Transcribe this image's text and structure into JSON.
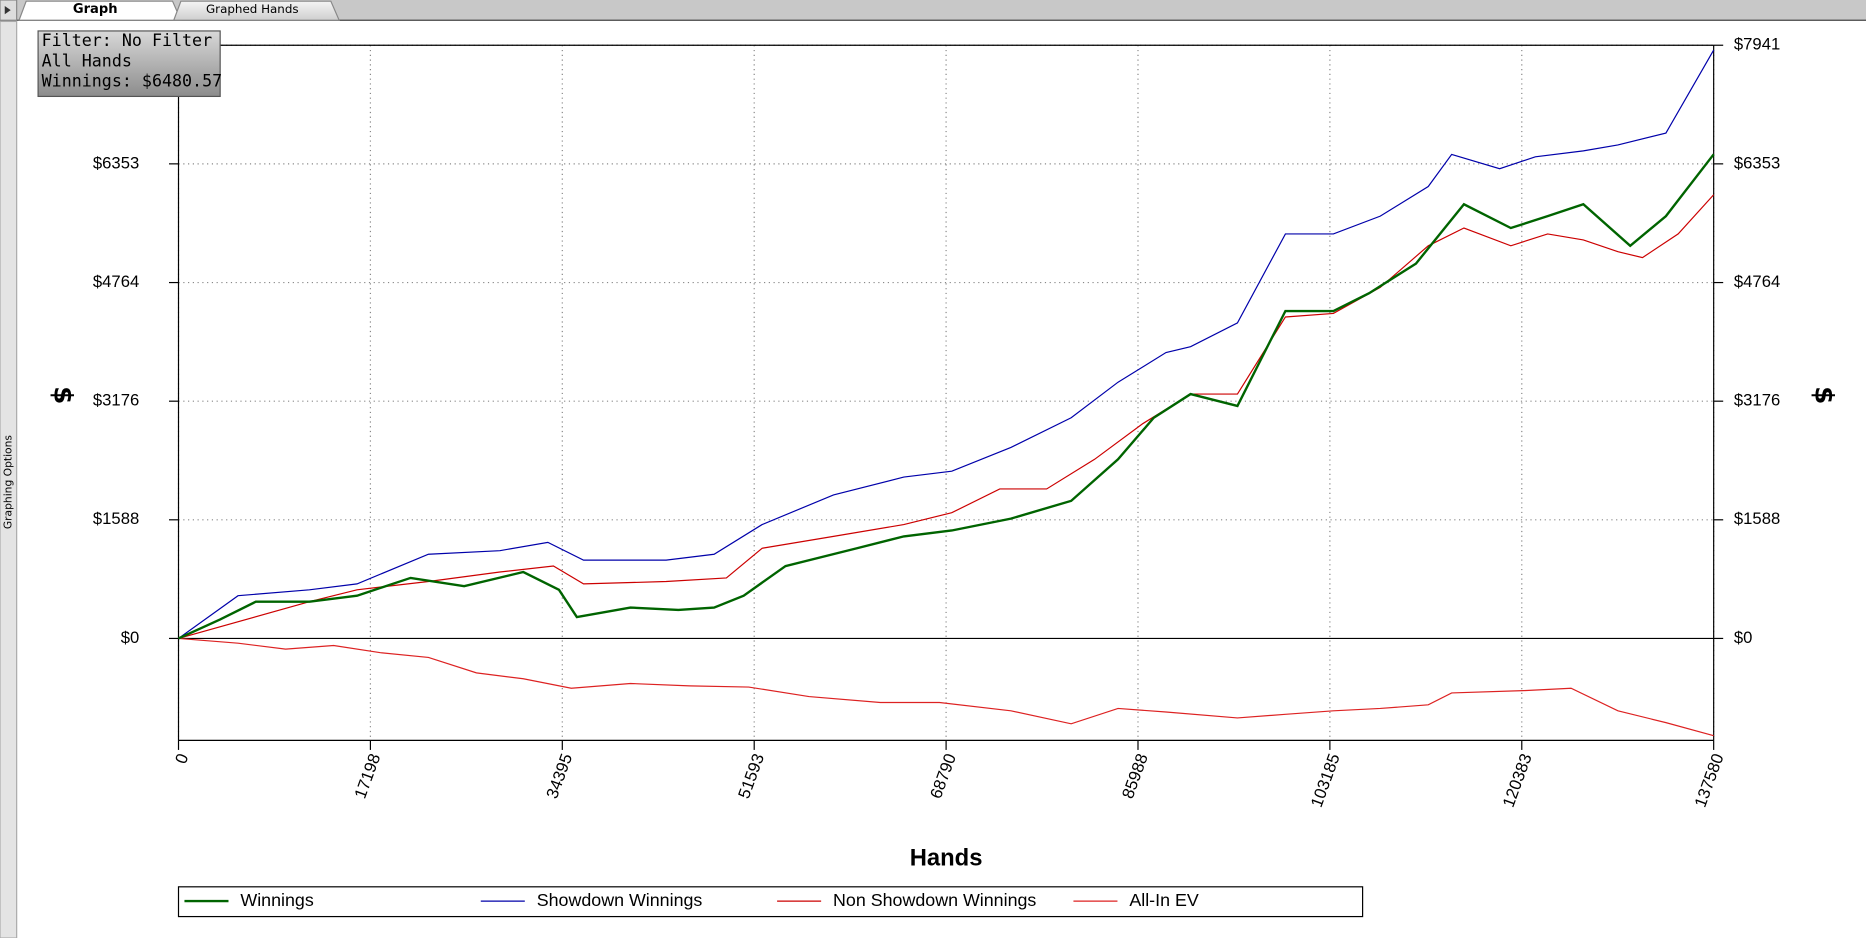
{
  "tabs": [
    "Graph",
    "Graphed Hands"
  ],
  "sidebar": {
    "label": "Graphing Options"
  },
  "filter_box": {
    "lines": [
      "Filter: No Filter",
      "All Hands",
      "Winnings: $6480.57"
    ]
  },
  "chart_data": {
    "type": "line",
    "xlabel": "Hands",
    "ylabel": "$",
    "y2label": "$",
    "xlim": [
      0,
      137580
    ],
    "xticks": [
      0,
      17198,
      34395,
      51593,
      68790,
      85988,
      103185,
      120383,
      137580
    ],
    "ylim": [
      -1365,
      7941
    ],
    "yticks": [
      {
        "value": 0,
        "label": "$0"
      },
      {
        "value": 1588,
        "label": "$1588"
      },
      {
        "value": 3176,
        "label": "$3176"
      },
      {
        "value": 4764,
        "label": "$4764"
      },
      {
        "value": 6353,
        "label": "$6353"
      },
      {
        "value": 7941,
        "label": "$7941"
      }
    ],
    "y2lim": [
      -1365,
      7941
    ],
    "y2ticks": [
      {
        "value": 0,
        "label": "$0"
      },
      {
        "value": 1588,
        "label": "$1588"
      },
      {
        "value": 3176,
        "label": "$3176"
      },
      {
        "value": 4764,
        "label": "$4764"
      },
      {
        "value": 6353,
        "label": "$6353"
      },
      {
        "value": 7941,
        "label": "$7941"
      }
    ],
    "grid": true,
    "legend": "bottom",
    "series": [
      {
        "name": "Winnings",
        "color": "#006400",
        "x": [
          0,
          3733,
          6932,
          11731,
          16000,
          20800,
          25600,
          30900,
          34100,
          35700,
          40500,
          44800,
          48000,
          50650,
          54400,
          60800,
          65000,
          69300,
          74600,
          80000,
          84200,
          87400,
          90700,
          94900,
          99200,
          103500,
          106700,
          110900,
          115200,
          119400,
          122700,
          125900,
          130100,
          133300,
          137580
        ],
        "values": [
          0,
          254,
          492,
          492,
          572,
          810,
          699,
          889,
          651,
          286,
          413,
          381,
          413,
          572,
          969,
          1207,
          1366,
          1445,
          1604,
          1842,
          2398,
          2954,
          3271,
          3112,
          4383,
          4383,
          4621,
          5018,
          5812,
          5494,
          5653,
          5812,
          5256,
          5653,
          6481
        ]
      },
      {
        "name": "Showdown Winnings",
        "color": "#0000aa",
        "x": [
          0,
          5333,
          11731,
          16000,
          22400,
          28800,
          33100,
          36300,
          43700,
          48000,
          52300,
          58700,
          65000,
          69300,
          74600,
          80000,
          84200,
          88500,
          90700,
          94900,
          99200,
          103500,
          107700,
          112000,
          114100,
          118400,
          121600,
          125900,
          129000,
          133300,
          137580
        ],
        "values": [
          0,
          572,
          651,
          730,
          1127,
          1175,
          1286,
          1048,
          1048,
          1127,
          1524,
          1921,
          2160,
          2239,
          2557,
          2954,
          3430,
          3827,
          3906,
          4224,
          5415,
          5415,
          5653,
          6050,
          6479,
          6288,
          6447,
          6527,
          6606,
          6765,
          7876
        ]
      },
      {
        "name": "Non Showdown Winnings",
        "color": "#cc0000",
        "x": [
          0,
          11731,
          16000,
          22400,
          28800,
          33600,
          36300,
          43700,
          49100,
          52300,
          58700,
          65000,
          69300,
          73600,
          77800,
          82100,
          86400,
          90700,
          94900,
          99200,
          103500,
          107700,
          112000,
          115200,
          119400,
          122700,
          125900,
          129000,
          131200,
          134400,
          137580
        ],
        "values": [
          0,
          492,
          651,
          762,
          889,
          969,
          730,
          762,
          810,
          1207,
          1366,
          1524,
          1683,
          2001,
          2001,
          2398,
          2874,
          3271,
          3271,
          4303,
          4351,
          4700,
          5256,
          5494,
          5256,
          5415,
          5335,
          5177,
          5098,
          5415,
          5939
        ]
      },
      {
        "name": "All-In EV",
        "color": "#dd2222",
        "x": [
          0,
          5333,
          9600,
          13900,
          18100,
          22400,
          26700,
          30900,
          35200,
          40500,
          45800,
          51100,
          56500,
          62900,
          68200,
          74600,
          80000,
          84200,
          88500,
          94900,
          99200,
          103500,
          107700,
          112000,
          114100,
          120500,
          124800,
          129000,
          133300,
          137580
        ],
        "values": [
          0,
          -64,
          -143,
          -95,
          -191,
          -254,
          -461,
          -540,
          -667,
          -603,
          -635,
          -651,
          -778,
          -858,
          -858,
          -969,
          -1143,
          -937,
          -985,
          -1064,
          -1016,
          -969,
          -937,
          -889,
          -730,
          -699,
          -667,
          -969,
          -1127,
          -1302
        ]
      }
    ]
  }
}
